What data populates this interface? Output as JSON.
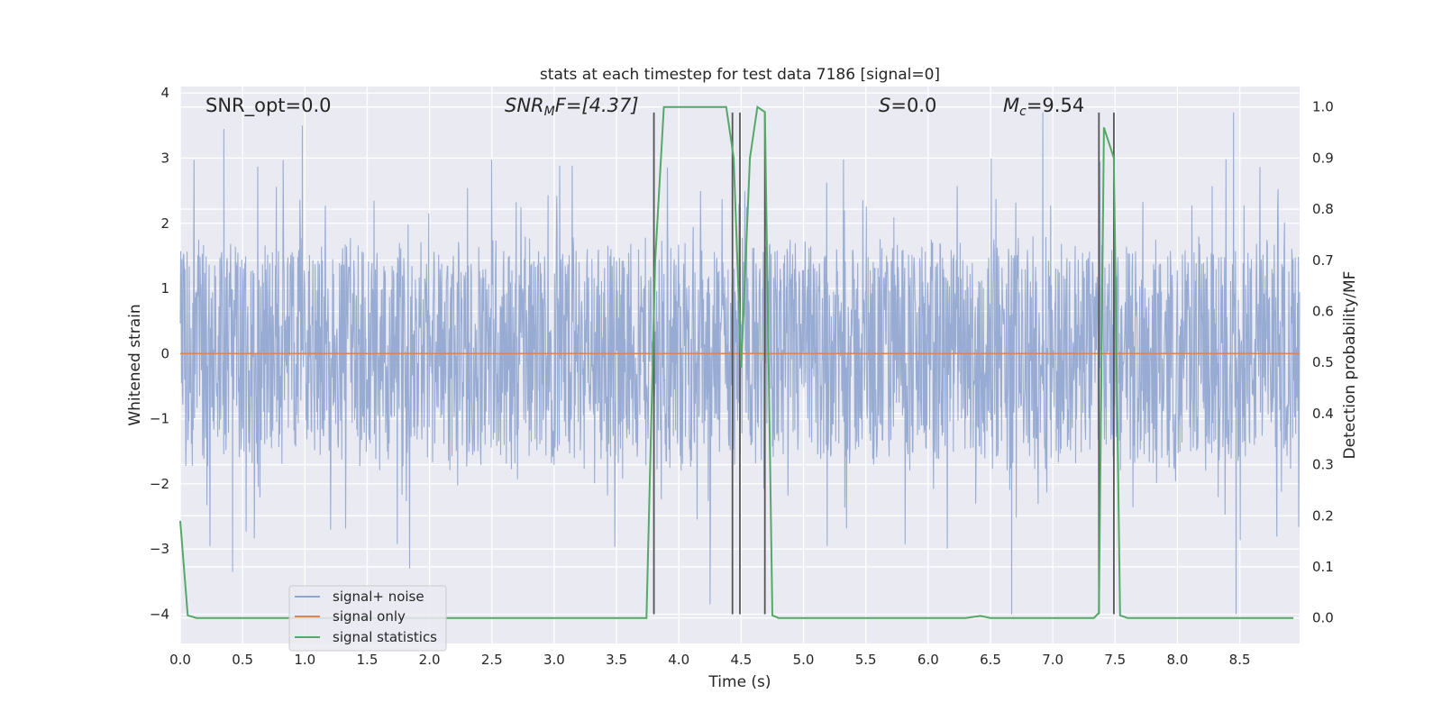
{
  "chart_data": {
    "type": "line",
    "title": "stats at each timestep for test data 7186 [signal=0]",
    "xlabel": "Time (s)",
    "ylabel_left": "Whitened strain",
    "ylabel_right": "Detection probability/MF",
    "xlim": [
      0.0,
      8.98
    ],
    "ylim_left": [
      -4.45,
      4.1
    ],
    "ylim_right": [
      -0.05,
      1.04
    ],
    "x_ticks": [
      "0.0",
      "0.5",
      "1.0",
      "1.5",
      "2.0",
      "2.5",
      "3.0",
      "3.5",
      "4.0",
      "4.5",
      "5.0",
      "5.5",
      "6.0",
      "6.5",
      "7.0",
      "7.5",
      "8.0",
      "8.5"
    ],
    "y_left_ticks": [
      "4",
      "3",
      "2",
      "1",
      "0",
      "−1",
      "−2",
      "−3",
      "−4"
    ],
    "y_right_ticks": [
      "1.0",
      "0.9",
      "0.8",
      "0.7",
      "0.6",
      "0.5",
      "0.4",
      "0.3",
      "0.2",
      "0.1",
      "0.0"
    ],
    "grid": true,
    "legend_placement": "lower-left",
    "annotations": {
      "snr_opt": "SNR_opt=0.0",
      "snr_mf_sym": "SNR",
      "snr_mf_sub": "M",
      "snr_mf_rest": "F=[4.37]",
      "s_sym": "S",
      "s_rest": "=0.0",
      "mc_sym": "M",
      "mc_sub": "c",
      "mc_rest": "=9.54"
    },
    "series": [
      {
        "name": "signal+ noise",
        "color": "#8fa5cf",
        "description_values": "dense noisy strain, mostly between -1.8 and 1.6, peaks up to ~3.7 and down to ~-4.0",
        "envelope": {
          "typical_max": 1.6,
          "typical_min": -1.8,
          "peak_max": 3.7,
          "peak_min": -4.0
        },
        "notable_peaks": [
          {
            "x": 0.35,
            "y": 3.45
          },
          {
            "x": 0.98,
            "y": 3.5
          },
          {
            "x": 0.42,
            "y": -3.35
          },
          {
            "x": 1.84,
            "y": -3.3
          },
          {
            "x": 6.92,
            "y": 3.7
          },
          {
            "x": 8.45,
            "y": 3.7
          },
          {
            "x": 8.47,
            "y": -4.0
          },
          {
            "x": 6.67,
            "y": -4.0
          },
          {
            "x": 4.25,
            "y": -3.85
          }
        ]
      },
      {
        "name": "signal only",
        "color": "#dd8452",
        "x": [
          0.0,
          8.98
        ],
        "y": [
          0.0,
          0.0
        ]
      },
      {
        "name": "signal statistics",
        "color": "#55a868",
        "axis": "right",
        "x": [
          0.0,
          0.06,
          0.13,
          0.5,
          1.0,
          1.5,
          2.0,
          2.5,
          3.0,
          3.5,
          3.74,
          3.81,
          3.88,
          4.0,
          4.2,
          4.38,
          4.44,
          4.5,
          4.57,
          4.63,
          4.69,
          4.75,
          4.8,
          5.0,
          5.5,
          6.0,
          6.3,
          6.42,
          6.5,
          7.0,
          7.33,
          7.37,
          7.41,
          7.45,
          7.49,
          7.54,
          7.6,
          8.0,
          8.5,
          8.93
        ],
        "y": [
          0.19,
          0.005,
          0.0,
          0.0,
          0.0,
          0.0,
          0.0,
          0.0,
          0.0,
          0.0,
          0.0,
          0.7,
          1.0,
          1.0,
          1.0,
          1.0,
          0.9,
          0.49,
          0.9,
          1.0,
          0.99,
          0.005,
          0.0,
          0.0,
          0.0,
          0.0,
          0.0,
          0.004,
          0.0,
          0.0,
          0.0,
          0.01,
          0.96,
          0.93,
          0.9,
          0.005,
          0.0,
          0.0,
          0.0,
          0.0
        ]
      }
    ],
    "vertical_lines": {
      "color": "#555555",
      "x": [
        3.8,
        4.43,
        4.49,
        4.69,
        7.37,
        7.49
      ],
      "y_top": 3.7,
      "y_bottom": -4.0
    }
  }
}
